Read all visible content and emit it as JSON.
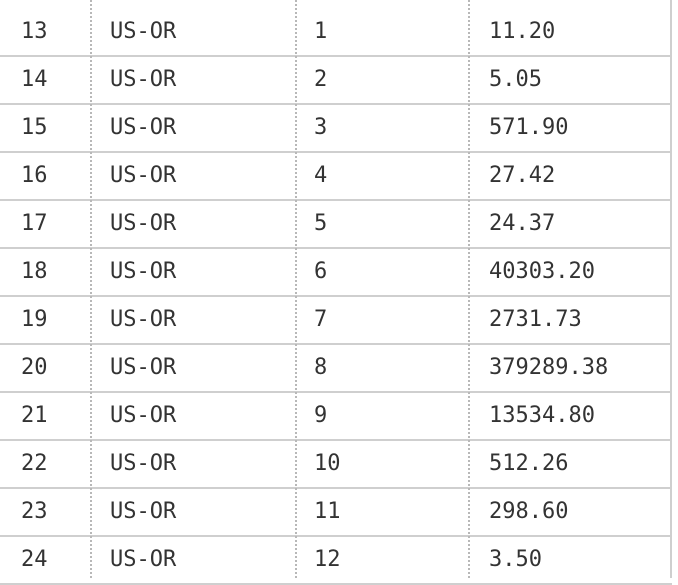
{
  "table": {
    "rows": [
      {
        "index": "13",
        "region": "US-OR",
        "month": "1",
        "value": "11.20"
      },
      {
        "index": "14",
        "region": "US-OR",
        "month": "2",
        "value": "5.05"
      },
      {
        "index": "15",
        "region": "US-OR",
        "month": "3",
        "value": "571.90"
      },
      {
        "index": "16",
        "region": "US-OR",
        "month": "4",
        "value": "27.42"
      },
      {
        "index": "17",
        "region": "US-OR",
        "month": "5",
        "value": "24.37"
      },
      {
        "index": "18",
        "region": "US-OR",
        "month": "6",
        "value": "40303.20"
      },
      {
        "index": "19",
        "region": "US-OR",
        "month": "7",
        "value": "2731.73"
      },
      {
        "index": "20",
        "region": "US-OR",
        "month": "8",
        "value": "379289.38"
      },
      {
        "index": "21",
        "region": "US-OR",
        "month": "9",
        "value": "13534.80"
      },
      {
        "index": "22",
        "region": "US-OR",
        "month": "10",
        "value": "512.26"
      },
      {
        "index": "23",
        "region": "US-OR",
        "month": "11",
        "value": "298.60"
      },
      {
        "index": "24",
        "region": "US-OR",
        "month": "12",
        "value": "3.50"
      }
    ]
  }
}
